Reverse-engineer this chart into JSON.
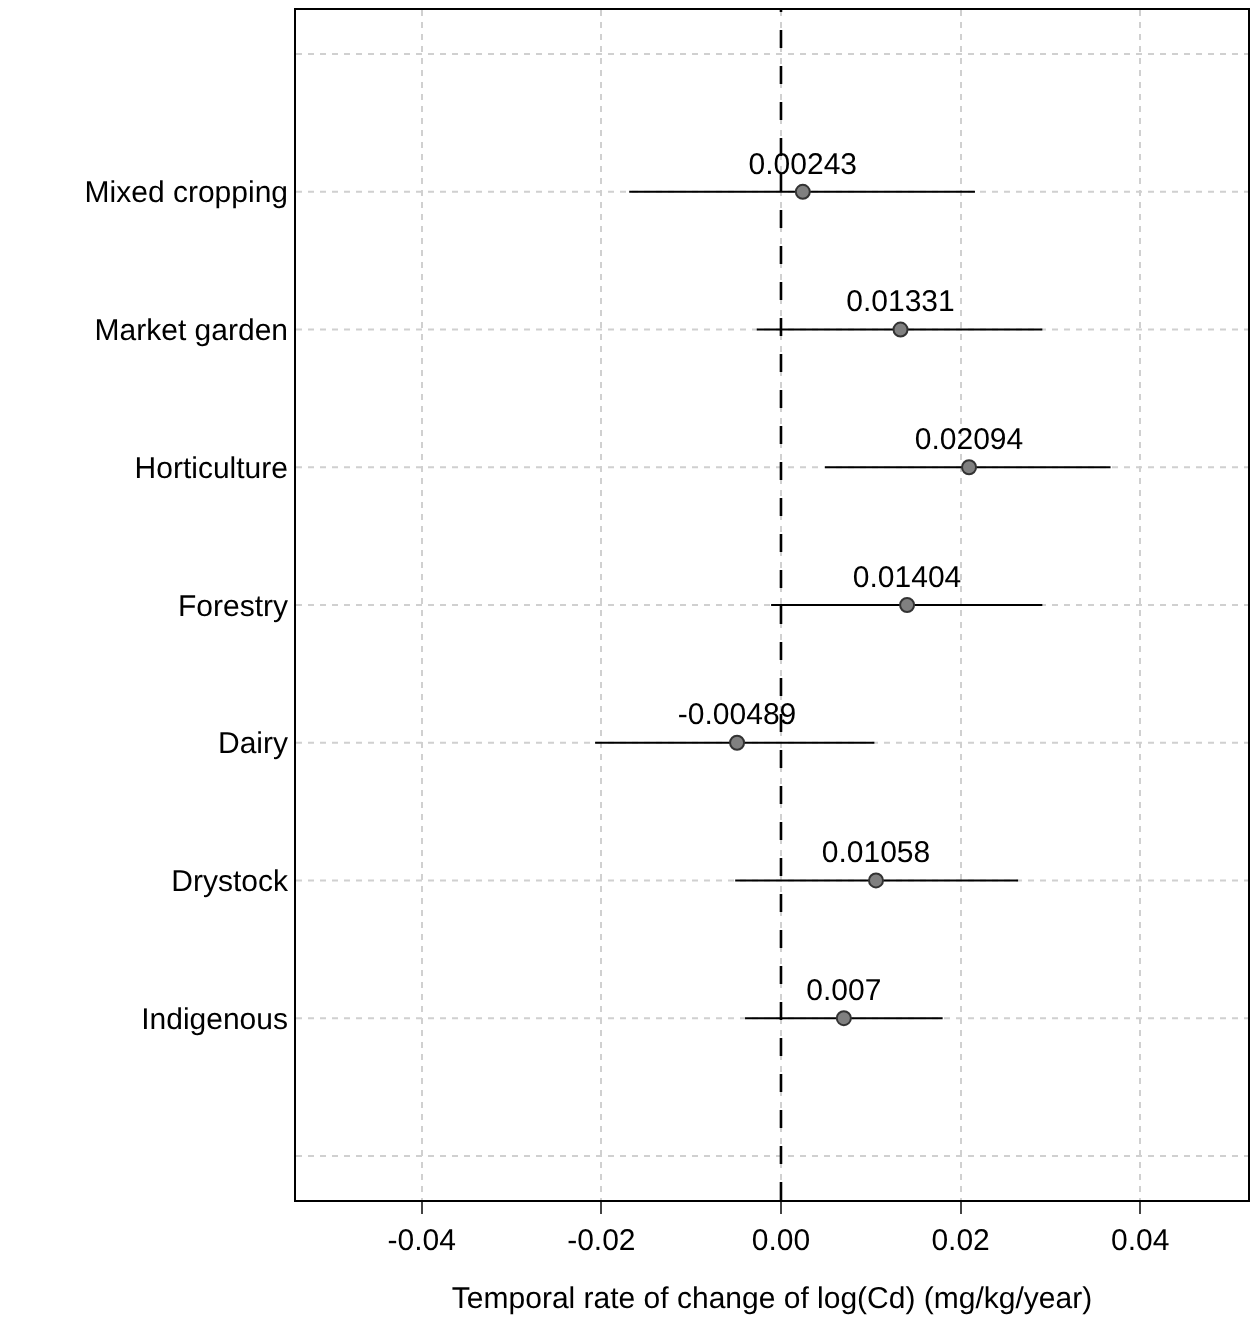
{
  "chart_data": {
    "type": "scatter",
    "orientation": "horizontal",
    "xlabel": "Temporal rate of change of log(Cd) (mg/kg/year)",
    "categories": [
      null,
      "Mixed cropping",
      "Market garden",
      "Horticulture",
      "Forestry",
      "Dairy",
      "Drystock",
      "Indigenous",
      null
    ],
    "values": [
      null,
      0.00243,
      0.01331,
      0.02094,
      0.01404,
      -0.00489,
      0.01058,
      0.007,
      null
    ],
    "errors": [
      null,
      [
        -0.0169,
        0.0216
      ],
      [
        -0.0027,
        0.0291
      ],
      [
        0.0049,
        0.0367
      ],
      [
        -0.0011,
        0.0291
      ],
      [
        -0.0207,
        0.0104
      ],
      [
        -0.0051,
        0.0264
      ],
      [
        -0.004,
        0.018
      ],
      null
    ],
    "color": "#808080",
    "marker": "circle",
    "data_labels": true,
    "xlim": [
      -0.054,
      0.052
    ],
    "xticks": [
      -0.04,
      -0.02,
      {
        "value": 0,
        "label": "0.00"
      },
      0.02,
      0.04
    ],
    "ref_lines": [
      {
        "axis": "x",
        "value": 0,
        "label": null,
        "color": "#000000",
        "line_style": "dashed"
      }
    ],
    "grid": true
  }
}
